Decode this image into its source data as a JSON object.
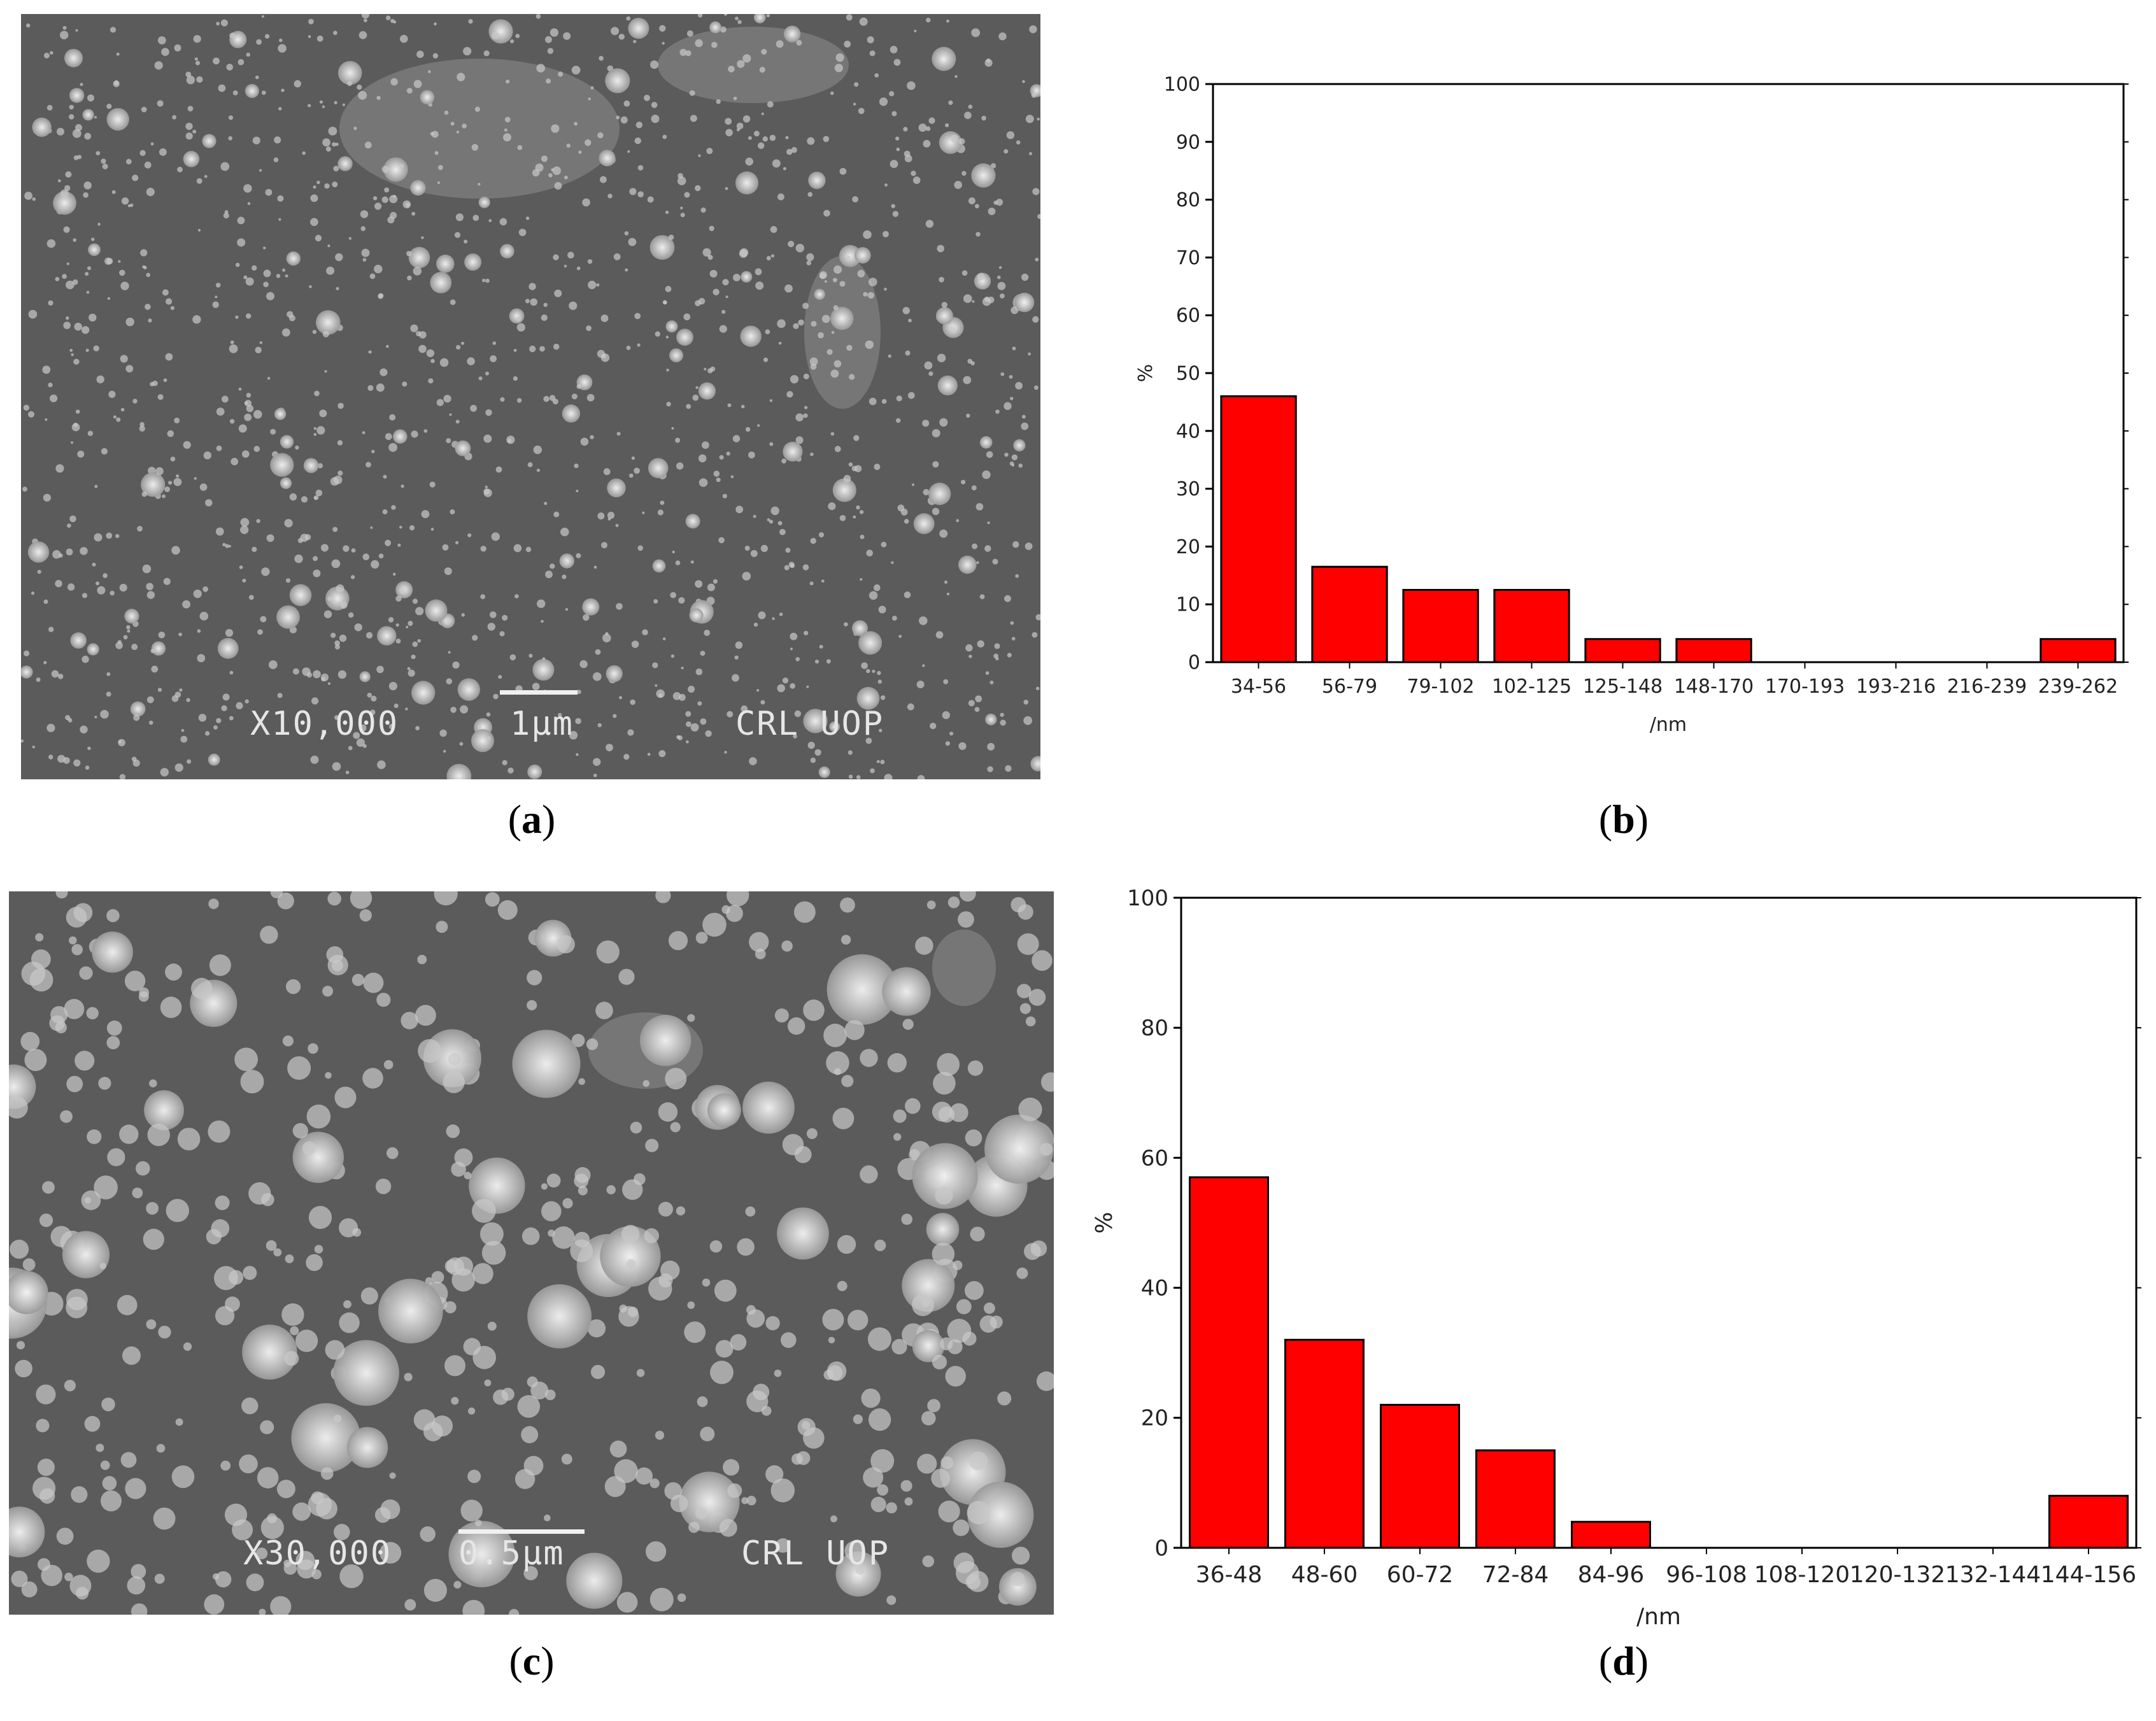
{
  "panels": {
    "a": {
      "caption_letter": "a",
      "magnification": "X10,000",
      "scale_label": "1μm",
      "lab_label": "CRL UOP"
    },
    "b": {
      "caption_letter": "b"
    },
    "c": {
      "caption_letter": "c",
      "magnification": "X30,000",
      "scale_label": "0.5μm",
      "lab_label": "CRL UOP"
    },
    "d": {
      "caption_letter": "d"
    }
  },
  "colors": {
    "bar_fill": "#ff0000",
    "bar_stroke": "#000000",
    "sem_background": "#5b5b5b"
  },
  "chart_data": [
    {
      "id": "b",
      "type": "bar",
      "categories": [
        "34-56",
        "56-79",
        "79-102",
        "102-125",
        "125-148",
        "148-170",
        "170-193",
        "193-216",
        "216-239",
        "239-262"
      ],
      "values": [
        46,
        16.5,
        12.5,
        12.5,
        4,
        4,
        0,
        0,
        0,
        4
      ],
      "xlabel": "/nm",
      "ylabel": "%",
      "ylim": [
        0,
        100
      ],
      "yticks": [
        0,
        10,
        20,
        30,
        40,
        50,
        60,
        70,
        80,
        90,
        100
      ],
      "grid": false
    },
    {
      "id": "d",
      "type": "bar",
      "categories": [
        "36-48",
        "48-60",
        "60-72",
        "72-84",
        "84-96",
        "96-108",
        "108-120",
        "120-132",
        "132-144",
        "144-156"
      ],
      "values": [
        57,
        32,
        22,
        15,
        4,
        0,
        0,
        0,
        0,
        8
      ],
      "xlabel": "/nm",
      "ylabel": "%",
      "ylim": [
        0,
        100
      ],
      "yticks": [
        0,
        20,
        40,
        60,
        80,
        100
      ],
      "grid": false
    }
  ]
}
